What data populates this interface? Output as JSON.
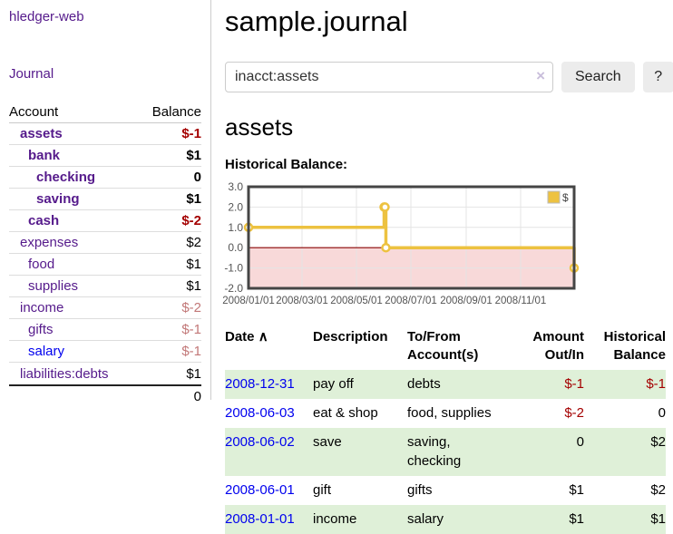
{
  "app": {
    "title": "hledger-web",
    "nav_journal": "Journal"
  },
  "sidebar": {
    "headers": {
      "account": "Account",
      "balance": "Balance"
    },
    "accounts": [
      {
        "name": "assets",
        "depth": 0,
        "bold": true,
        "balance": "$-1",
        "negative": true,
        "unvisited": false
      },
      {
        "name": "bank",
        "depth": 1,
        "bold": true,
        "balance": "$1",
        "negative": false,
        "unvisited": false
      },
      {
        "name": "checking",
        "depth": 2,
        "bold": true,
        "balance": "0",
        "negative": false,
        "unvisited": false
      },
      {
        "name": "saving",
        "depth": 2,
        "bold": true,
        "balance": "$1",
        "negative": false,
        "unvisited": false
      },
      {
        "name": "cash",
        "depth": 1,
        "bold": true,
        "balance": "$-2",
        "negative": true,
        "unvisited": false
      },
      {
        "name": "expenses",
        "depth": 0,
        "bold": false,
        "balance": "$2",
        "negative": false,
        "unvisited": false
      },
      {
        "name": "food",
        "depth": 1,
        "bold": false,
        "balance": "$1",
        "negative": false,
        "unvisited": false
      },
      {
        "name": "supplies",
        "depth": 1,
        "bold": false,
        "balance": "$1",
        "negative": false,
        "unvisited": false
      },
      {
        "name": "income",
        "depth": 0,
        "bold": false,
        "balance": "$-2",
        "negative": true,
        "unvisited": false
      },
      {
        "name": "gifts",
        "depth": 1,
        "bold": false,
        "balance": "$-1",
        "negative": true,
        "unvisited": false
      },
      {
        "name": "salary",
        "depth": 1,
        "bold": false,
        "balance": "$-1",
        "negative": true,
        "unvisited": true
      },
      {
        "name": "liabilities:debts",
        "depth": 0,
        "bold": false,
        "balance": "$1",
        "negative": false,
        "unvisited": false
      }
    ],
    "total": "0"
  },
  "header": {
    "title": "sample.journal"
  },
  "search": {
    "value": "inacct:assets",
    "clear_icon": "×",
    "button": "Search",
    "help_button": "?"
  },
  "account_page": {
    "heading": "assets",
    "chart_label": "Historical Balance:"
  },
  "chart_data": {
    "type": "line",
    "step": true,
    "series": [
      {
        "name": "$",
        "color": "#edc240",
        "points": [
          [
            "2008-01-01",
            1
          ],
          [
            "2008-06-01",
            2
          ],
          [
            "2008-06-02",
            2
          ],
          [
            "2008-06-03",
            0
          ],
          [
            "2008-12-31",
            -1
          ]
        ]
      }
    ],
    "x_ticks": [
      "2008/01/01",
      "2008/03/01",
      "2008/05/01",
      "2008/07/01",
      "2008/09/01",
      "2008/11/01"
    ],
    "y_ticks": [
      "3.0",
      "2.0",
      "1.0",
      "0.0",
      "-1.0",
      "-2.0"
    ],
    "ylim": [
      -2,
      3
    ],
    "legend_position": "top-right",
    "grid": true,
    "colors": {
      "negative_region": "#f8d9d9",
      "zero_line": "#8b0000",
      "grid_line": "#e4e4e4",
      "border": "#454545",
      "tick_label": "#545454"
    }
  },
  "transactions": {
    "headers": {
      "date": "Date",
      "sort_icon": "∧",
      "description": "Description",
      "tofrom": "To/From Account(s)",
      "amount": "Amount Out/In",
      "balance": "Historical Balance"
    },
    "rows": [
      {
        "date": "2008-12-31",
        "description": "pay off",
        "accounts": "debts",
        "amount": "$-1",
        "amount_neg": true,
        "balance": "$-1",
        "balance_neg": true,
        "highlight": true
      },
      {
        "date": "2008-06-03",
        "description": "eat & shop",
        "accounts": "food, supplies",
        "amount": "$-2",
        "amount_neg": true,
        "balance": "0",
        "balance_neg": false,
        "highlight": false
      },
      {
        "date": "2008-06-02",
        "description": "save",
        "accounts": "saving, checking",
        "amount": "0",
        "amount_neg": false,
        "balance": "$2",
        "balance_neg": false,
        "highlight": true
      },
      {
        "date": "2008-06-01",
        "description": "gift",
        "accounts": "gifts",
        "amount": "$1",
        "amount_neg": false,
        "balance": "$2",
        "balance_neg": false,
        "highlight": false
      },
      {
        "date": "2008-01-01",
        "description": "income",
        "accounts": "salary",
        "amount": "$1",
        "amount_neg": false,
        "balance": "$1",
        "balance_neg": false,
        "highlight": true
      }
    ]
  },
  "colors": {
    "link_visited_purple": "#551a8b",
    "link_unvisited_blue": "#0000ee",
    "negative_strong": "#a40000",
    "negative_soft": "#c27878",
    "row_highlight_green": "#dff0d8",
    "series_gold": "#edc240"
  }
}
